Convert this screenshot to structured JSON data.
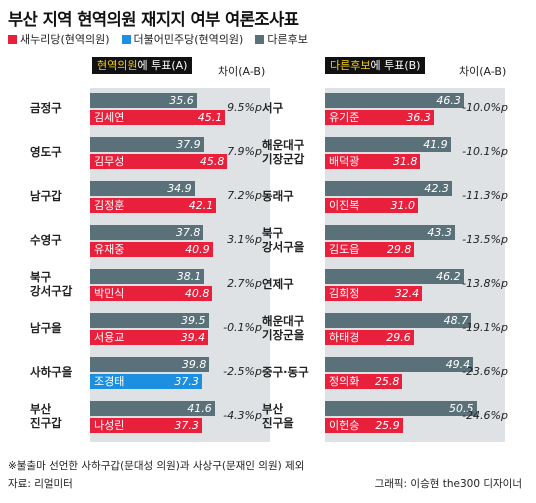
{
  "title": "부산 지역 현역의원 재지지 여부 여론조사표",
  "legend": {
    "items": [
      {
        "label": "새누리당(현역의원)",
        "color": "#e8203c"
      },
      {
        "label": "더불어민주당(현역의원)",
        "color": "#1d8fe0"
      },
      {
        "label": "다른후보",
        "color": "#5b7179"
      }
    ]
  },
  "headers": {
    "left_highlight": "현역의원",
    "left_rest": "에 투표(A)",
    "right_highlight": "다른후보",
    "right_rest": "에 투표(B)",
    "diff_label": "차이(A-B)"
  },
  "footnote": "※불출마 선언한 사하구갑(문대성 의원)과 사상구(문재인 의원) 제외",
  "source": "자료: 리얼미터",
  "credit": "그래픽: 이승현 the300 디자이너",
  "colors": {
    "incumbent_saenuri": "#e8203c",
    "incumbent_minjoo": "#1d8fe0",
    "other": "#5b7179",
    "panel": "#dfe2e4"
  },
  "chart_data": {
    "type": "bar",
    "title": "부산 지역 현역의원 재지지 여부 여론조사표",
    "series": [
      {
        "name": "현역의원에 투표(A)"
      },
      {
        "name": "다른후보에 투표(B)"
      }
    ],
    "rows": [
      {
        "region": [
          "금정구"
        ],
        "other": "35.6",
        "incumbent": "45.1",
        "name": "김세연",
        "party": "saenuri",
        "diff": "9.5%p"
      },
      {
        "region": [
          "영도구"
        ],
        "other": "37.9",
        "incumbent": "45.8",
        "name": "김무성",
        "party": "saenuri",
        "diff": "7.9%p"
      },
      {
        "region": [
          "남구갑"
        ],
        "other": "34.9",
        "incumbent": "42.1",
        "name": "김정훈",
        "party": "saenuri",
        "diff": "7.2%p"
      },
      {
        "region": [
          "수영구"
        ],
        "other": "37.8",
        "incumbent": "40.9",
        "name": "유재중",
        "party": "saenuri",
        "diff": "3.1%p"
      },
      {
        "region": [
          "북구",
          "강서구갑"
        ],
        "other": "38.1",
        "incumbent": "40.8",
        "name": "박민식",
        "party": "saenuri",
        "diff": "2.7%p"
      },
      {
        "region": [
          "남구을"
        ],
        "other": "39.5",
        "incumbent": "39.4",
        "name": "서용교",
        "party": "saenuri",
        "diff": "-0.1%p"
      },
      {
        "region": [
          "사하구을"
        ],
        "other": "39.8",
        "incumbent": "37.3",
        "name": "조경태",
        "party": "minjoo",
        "diff": "-2.5%p"
      },
      {
        "region": [
          "부산",
          "진구갑"
        ],
        "other": "41.6",
        "incumbent": "37.3",
        "name": "나성린",
        "party": "saenuri",
        "diff": "-4.3%p"
      },
      {
        "region": [
          "서구"
        ],
        "other": "46.3",
        "incumbent": "36.3",
        "name": "유기준",
        "party": "saenuri",
        "diff": "-10.0%p"
      },
      {
        "region": [
          "해운대구",
          "기장군갑"
        ],
        "other": "41.9",
        "incumbent": "31.8",
        "name": "배덕광",
        "party": "saenuri",
        "diff": "-10.1%p"
      },
      {
        "region": [
          "동래구"
        ],
        "other": "42.3",
        "incumbent": "31.0",
        "name": "이진복",
        "party": "saenuri",
        "diff": "-11.3%p"
      },
      {
        "region": [
          "북구",
          "강서구을"
        ],
        "other": "43.3",
        "incumbent": "29.8",
        "name": "김도읍",
        "party": "saenuri",
        "diff": "-13.5%p"
      },
      {
        "region": [
          "연제구"
        ],
        "other": "46.2",
        "incumbent": "32.4",
        "name": "김희정",
        "party": "saenuri",
        "diff": "-13.8%p"
      },
      {
        "region": [
          "해운대구",
          "기장군을"
        ],
        "other": "48.7",
        "incumbent": "29.6",
        "name": "하태경",
        "party": "saenuri",
        "diff": "-19.1%p"
      },
      {
        "region": [
          "중구·동구"
        ],
        "other": "49.4",
        "incumbent": "25.8",
        "name": "정의화",
        "party": "saenuri",
        "diff": "-23.6%p"
      },
      {
        "region": [
          "부산",
          "진구을"
        ],
        "other": "50.5",
        "incumbent": "25.9",
        "name": "이헌승",
        "party": "saenuri",
        "diff": "-24.6%p"
      }
    ]
  }
}
